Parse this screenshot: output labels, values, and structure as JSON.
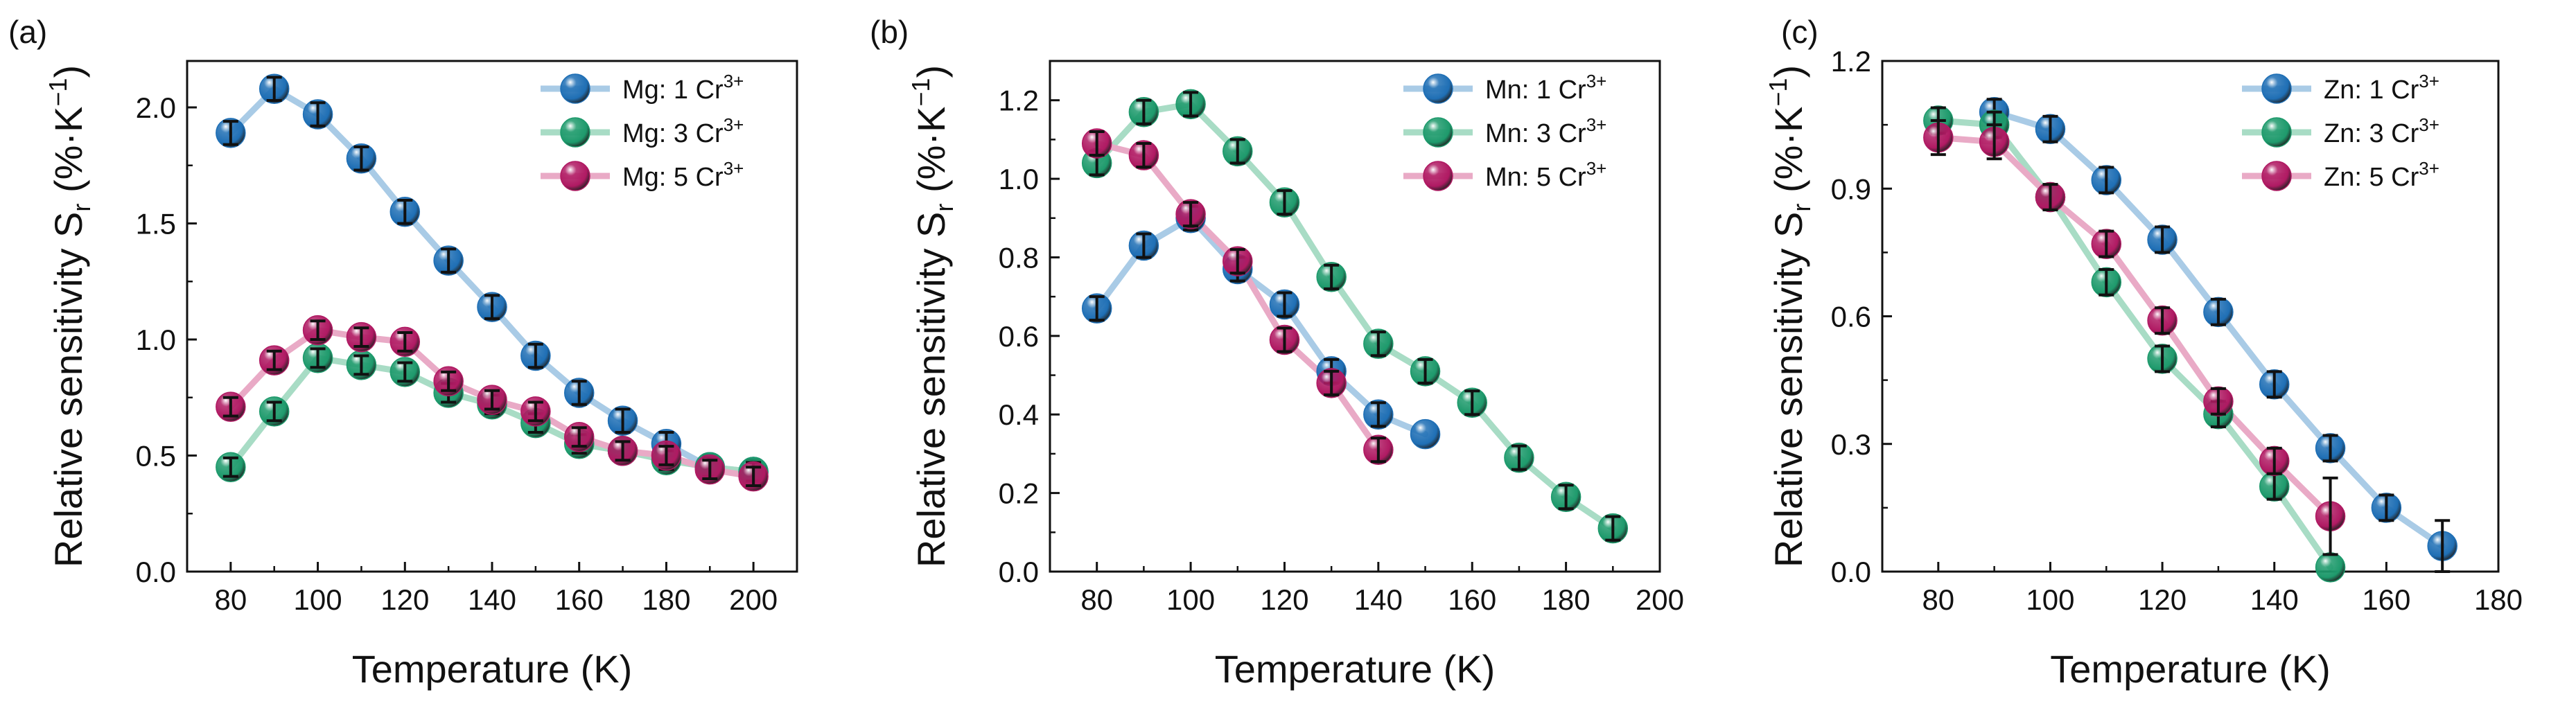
{
  "chart_data": [
    {
      "type": "line",
      "panel_label": "(a)",
      "xlabel": "Temperature (K)",
      "ylabel": {
        "main": "Relative sensitivity S",
        "sub": "r",
        "units": " (%·K",
        "exp": "−1",
        "close": ")"
      },
      "xlim": [
        70,
        210
      ],
      "ylim": [
        0,
        2.2
      ],
      "xticks": [
        80,
        100,
        120,
        140,
        160,
        180,
        200
      ],
      "xtick_labels": [
        "80",
        "100",
        "120",
        "140",
        "160",
        "180",
        "200"
      ],
      "yticks": [
        0,
        0.5,
        1.0,
        1.5,
        2.0
      ],
      "ytick_labels": [
        "0.0",
        "0.5",
        "1.0",
        "1.5",
        "2.0"
      ],
      "legend_position": "top-right",
      "series": [
        {
          "name": "Mg: 1 Cr",
          "sup": "3+",
          "color": "#1f6fb5",
          "line_color": "#a9cbe6",
          "x": [
            80,
            90,
            100,
            110,
            120,
            130,
            140,
            150,
            160,
            170,
            180,
            190,
            200
          ],
          "y": [
            1.89,
            2.08,
            1.97,
            1.78,
            1.55,
            1.34,
            1.14,
            0.93,
            0.77,
            0.65,
            0.55,
            0.45,
            0.43
          ],
          "err": [
            0.05,
            0.05,
            0.05,
            0.05,
            0.05,
            0.05,
            0.05,
            0.05,
            0.05,
            0.05,
            0.05,
            0.05,
            0.05
          ]
        },
        {
          "name": "Mg: 3 Cr",
          "sup": "3+",
          "color": "#1e9a6c",
          "line_color": "#a8dcc5",
          "x": [
            80,
            90,
            100,
            110,
            120,
            130,
            140,
            150,
            160,
            170,
            180,
            190,
            200
          ],
          "y": [
            0.45,
            0.69,
            0.92,
            0.89,
            0.86,
            0.77,
            0.72,
            0.64,
            0.55,
            0.52,
            0.48,
            0.45,
            0.43
          ],
          "err": [
            0.04,
            0.04,
            0.04,
            0.04,
            0.04,
            0.04,
            0.04,
            0.04,
            0.04,
            0.04,
            0.04,
            0.04,
            0.04
          ]
        },
        {
          "name": "Mg: 5 Cr",
          "sup": "3+",
          "color": "#b01a63",
          "line_color": "#e9aac6",
          "x": [
            80,
            90,
            100,
            110,
            120,
            130,
            140,
            150,
            160,
            170,
            180,
            190,
            200
          ],
          "y": [
            0.71,
            0.91,
            1.04,
            1.01,
            0.99,
            0.82,
            0.74,
            0.69,
            0.58,
            0.52,
            0.5,
            0.44,
            0.41
          ],
          "err": [
            0.04,
            0.04,
            0.04,
            0.04,
            0.04,
            0.04,
            0.04,
            0.04,
            0.04,
            0.04,
            0.04,
            0.04,
            0.04
          ]
        }
      ]
    },
    {
      "type": "line",
      "panel_label": "(b)",
      "xlabel": "Temperature (K)",
      "ylabel": {
        "main": "Relative sensitivity S",
        "sub": "r",
        "units": " (%·K",
        "exp": "−1",
        "close": ")"
      },
      "xlim": [
        70,
        200
      ],
      "ylim": [
        0,
        1.3
      ],
      "xticks": [
        80,
        100,
        120,
        140,
        160,
        180,
        200
      ],
      "xtick_labels": [
        "80",
        "100",
        "120",
        "140",
        "160",
        "180",
        "200"
      ],
      "yticks": [
        0,
        0.2,
        0.4,
        0.6,
        0.8,
        1.0,
        1.2
      ],
      "ytick_labels": [
        "0.0",
        "0.2",
        "0.4",
        "0.6",
        "0.8",
        "1.0",
        "1.2"
      ],
      "legend_position": "top-right",
      "series": [
        {
          "name": "Mn: 1 Cr",
          "sup": "3+",
          "color": "#1f6fb5",
          "line_color": "#a9cbe6",
          "x": [
            80,
            90,
            100,
            110,
            120,
            130,
            140,
            150
          ],
          "y": [
            0.67,
            0.83,
            0.9,
            0.77,
            0.68,
            0.51,
            0.4,
            0.35
          ],
          "err": [
            0.03,
            0.03,
            0.03,
            0.03,
            0.03,
            0.03,
            0.03,
            0.0
          ]
        },
        {
          "name": "Mn: 3 Cr",
          "sup": "3+",
          "color": "#1e9a6c",
          "line_color": "#a8dcc5",
          "x": [
            80,
            90,
            100,
            110,
            120,
            130,
            140,
            150,
            160,
            170,
            180,
            190
          ],
          "y": [
            1.04,
            1.17,
            1.19,
            1.07,
            0.94,
            0.75,
            0.58,
            0.51,
            0.43,
            0.29,
            0.19,
            0.11
          ],
          "err": [
            0.03,
            0.03,
            0.03,
            0.03,
            0.03,
            0.03,
            0.03,
            0.03,
            0.03,
            0.03,
            0.03,
            0.03
          ]
        },
        {
          "name": "Mn: 5 Cr",
          "sup": "3+",
          "color": "#b01a63",
          "line_color": "#e9aac6",
          "x": [
            80,
            90,
            100,
            110,
            120,
            130,
            140
          ],
          "y": [
            1.09,
            1.06,
            0.91,
            0.79,
            0.59,
            0.48,
            0.31
          ],
          "err": [
            0.03,
            0.03,
            0.03,
            0.03,
            0.03,
            0.03,
            0.03
          ]
        }
      ]
    },
    {
      "type": "line",
      "panel_label": "(c)",
      "xlabel": "Temperature (K)",
      "ylabel": {
        "main": "Relative sensitivity S",
        "sub": "r",
        "units": " (%·K",
        "exp": "−1",
        "close": ")"
      },
      "xlim": [
        70,
        180
      ],
      "ylim": [
        0,
        1.2
      ],
      "xticks": [
        80,
        100,
        120,
        140,
        160,
        180
      ],
      "xtick_labels": [
        "80",
        "100",
        "120",
        "140",
        "160",
        "180"
      ],
      "yticks": [
        0,
        0.3,
        0.6,
        0.9,
        1.2
      ],
      "ytick_labels": [
        "0.0",
        "0.3",
        "0.6",
        "0.9",
        "1.2"
      ],
      "legend_position": "top-right",
      "series": [
        {
          "name": "Zn: 1 Cr",
          "sup": "3+",
          "color": "#1f6fb5",
          "line_color": "#a9cbe6",
          "x": [
            90,
            100,
            110,
            120,
            130,
            140,
            150,
            160,
            170
          ],
          "y": [
            1.08,
            1.04,
            0.92,
            0.78,
            0.61,
            0.44,
            0.29,
            0.15,
            0.06
          ],
          "err": [
            0.03,
            0.03,
            0.03,
            0.03,
            0.03,
            0.03,
            0.03,
            0.03,
            0.06
          ]
        },
        {
          "name": "Zn: 3 Cr",
          "sup": "3+",
          "color": "#1e9a6c",
          "line_color": "#a8dcc5",
          "x": [
            80,
            90,
            100,
            110,
            120,
            130,
            140,
            150
          ],
          "y": [
            1.06,
            1.05,
            0.88,
            0.68,
            0.5,
            0.37,
            0.2,
            0.01
          ],
          "err": [
            0.03,
            0.03,
            0.03,
            0.03,
            0.03,
            0.03,
            0.03,
            0.0
          ]
        },
        {
          "name": "Zn: 5 Cr",
          "sup": "3+",
          "color": "#b01a63",
          "line_color": "#e9aac6",
          "x": [
            80,
            90,
            100,
            110,
            120,
            130,
            140,
            150
          ],
          "y": [
            1.02,
            1.01,
            0.88,
            0.77,
            0.59,
            0.4,
            0.26,
            0.13
          ],
          "err": [
            0.04,
            0.04,
            0.03,
            0.03,
            0.03,
            0.03,
            0.03,
            0.09
          ]
        }
      ]
    }
  ]
}
